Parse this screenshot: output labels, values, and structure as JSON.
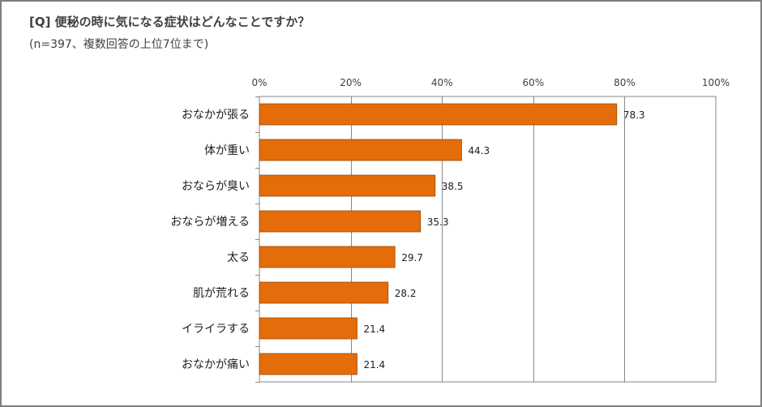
{
  "title": "[Q] 便秘の時に気になる症状はどんなことですか？",
  "subtitle": "(n=397、複数回答の上位7位まで)",
  "colors": {
    "bar": "#E46C0A",
    "bar_border": "#9C4A08",
    "grid": "#888888"
  },
  "chart_data": {
    "type": "bar",
    "orientation": "horizontal",
    "title": "[Q] 便秘の時に気になる症状はどんなことですか？",
    "subtitle": "(n=397、複数回答の上位7位まで)",
    "categories": [
      "おなかが張る",
      "体が重い",
      "おならが臭い",
      "おならが増える",
      "太る",
      "肌が荒れる",
      "イライラする",
      "おなかが痛い"
    ],
    "values": [
      78.3,
      44.3,
      38.5,
      35.3,
      29.7,
      28.2,
      21.4,
      21.4
    ],
    "value_labels": [
      "78.3",
      "44.3",
      "38.5",
      "35.3",
      "29.7",
      "28.2",
      "21.4",
      "21.4"
    ],
    "xlim": [
      0,
      100
    ],
    "xticks": [
      0,
      20,
      40,
      60,
      80,
      100
    ],
    "xtick_labels": [
      "0%",
      "20%",
      "40%",
      "60%",
      "80%",
      "100%"
    ],
    "axis_position": "top",
    "grid": true,
    "legend": "none"
  }
}
